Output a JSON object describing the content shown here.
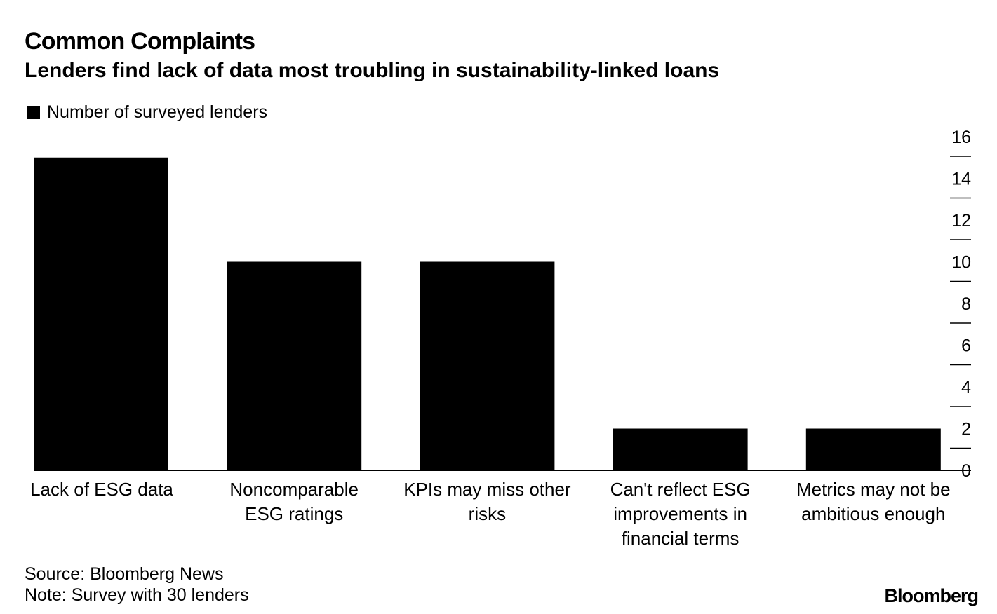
{
  "header": {
    "title": "Common Complaints",
    "subtitle": "Lenders find lack of data most troubling in sustainability-linked loans"
  },
  "footer": {
    "source": "Source: Bloomberg News",
    "note": "Note: Survey with 30 lenders",
    "brand": "Bloomberg"
  },
  "colors": {
    "bar": "#000000",
    "axis": "#000000",
    "background": "#ffffff"
  },
  "chart_data": {
    "type": "bar",
    "title": "Common Complaints",
    "subtitle": "Lenders find lack of data most troubling in sustainability-linked loans",
    "categories": [
      [
        "Lack of ESG data"
      ],
      [
        "Noncomparable",
        "ESG ratings"
      ],
      [
        "KPIs may miss other",
        "risks"
      ],
      [
        "Can't reflect ESG",
        "improvements in",
        "financial terms"
      ],
      [
        "Metrics may not be",
        "ambitious enough"
      ]
    ],
    "series": [
      {
        "name": "Number of surveyed lenders",
        "values": [
          15,
          10,
          10,
          2,
          2
        ]
      }
    ],
    "ylim": [
      0,
      16
    ],
    "yticks": [
      0,
      2,
      4,
      6,
      8,
      10,
      12,
      14,
      16
    ],
    "yaxis_position": "right",
    "legend_position": "top-left",
    "grid": false
  }
}
